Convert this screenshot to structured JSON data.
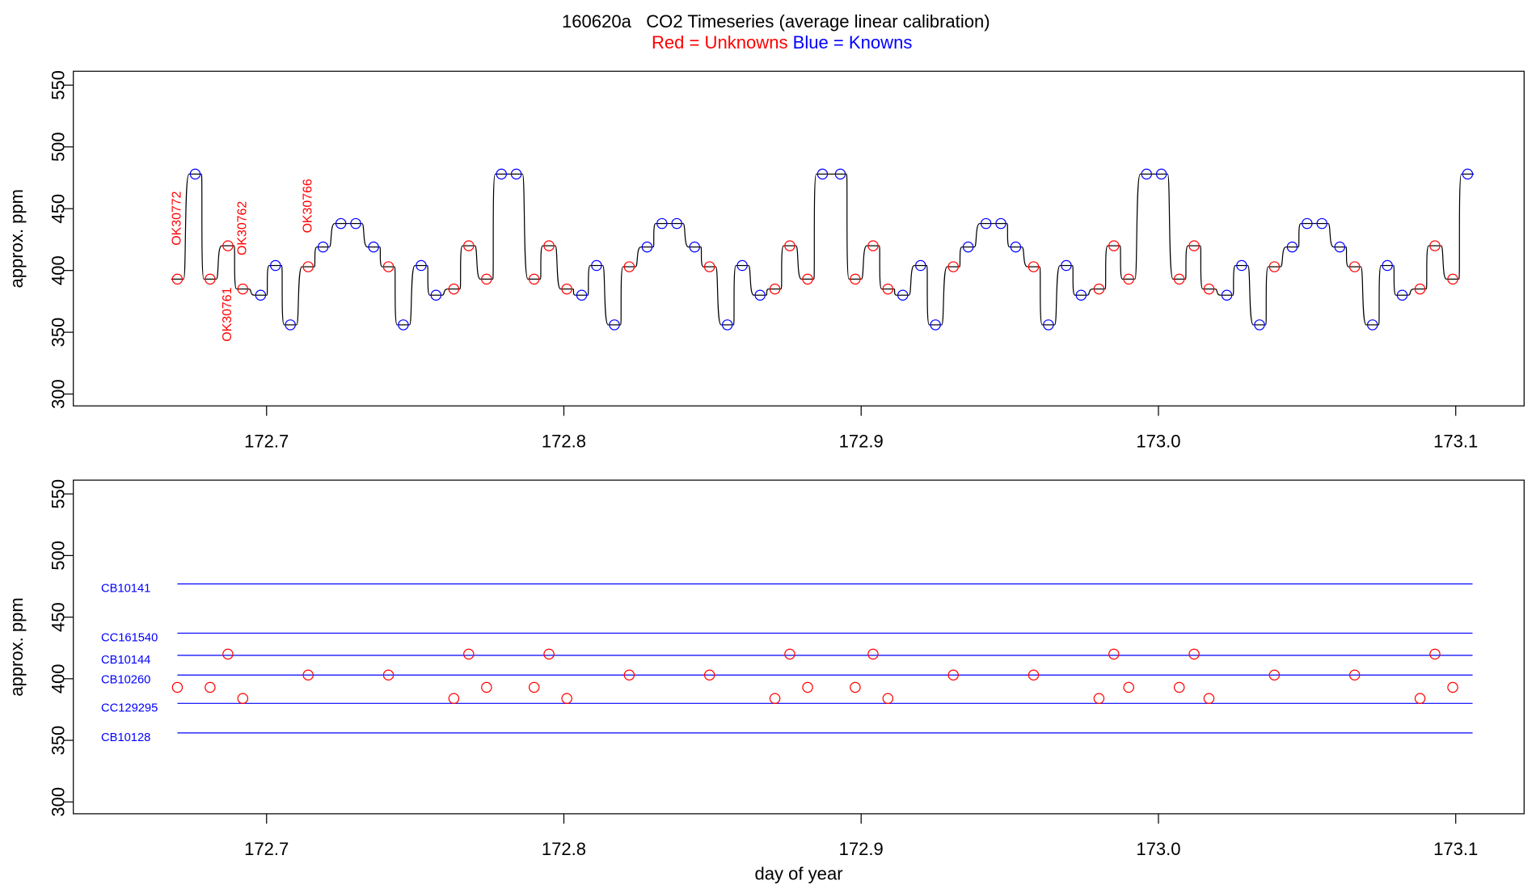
{
  "chart_data": [
    {
      "type": "step",
      "title": "160620a   CO2 Timeseries (average linear calibration)",
      "legend": [
        {
          "label": "Red = Unknowns",
          "color": "red"
        },
        {
          "label": "Blue = Knowns",
          "color": "blue"
        }
      ],
      "ylabel": "approx. ppm",
      "x": [
        172.67,
        172.676,
        172.681,
        172.687,
        172.692,
        172.698,
        172.703,
        172.708,
        172.714,
        172.719,
        172.725,
        172.73,
        172.736,
        172.741,
        172.746,
        172.752,
        172.757,
        172.763,
        172.768,
        172.774,
        172.779,
        172.784,
        172.79,
        172.795,
        172.801,
        172.806,
        172.811,
        172.817,
        172.822,
        172.828,
        172.833,
        172.838,
        172.844,
        172.849,
        172.855,
        172.86,
        172.866,
        172.871,
        172.876,
        172.882,
        172.887,
        172.893,
        172.898,
        172.904,
        172.909,
        172.914,
        172.92,
        172.925,
        172.931,
        172.936,
        172.942,
        172.947,
        172.952,
        172.958,
        172.963,
        172.969,
        172.974,
        172.98,
        172.985,
        172.99,
        172.996,
        173.001,
        173.007,
        173.012,
        173.017,
        173.023,
        173.028,
        173.034,
        173.039,
        173.045,
        173.05,
        173.055,
        173.061,
        173.066,
        173.072,
        173.077,
        173.082,
        173.088,
        173.093,
        173.099,
        173.104
      ],
      "values": [
        393,
        478,
        393,
        420,
        385,
        380,
        404,
        356,
        403,
        419,
        438,
        438,
        419,
        403,
        356,
        404,
        380,
        385,
        420,
        393,
        478,
        478,
        393,
        420,
        385,
        380,
        404,
        356,
        403,
        419,
        438,
        438,
        419,
        403,
        356,
        404,
        380,
        385,
        420,
        393,
        478,
        478,
        393,
        420,
        385,
        380,
        404,
        356,
        403,
        419,
        438,
        438,
        419,
        403,
        356,
        404,
        380,
        385,
        420,
        393,
        478,
        478,
        393,
        420,
        385,
        380,
        404,
        356,
        403,
        419,
        438,
        438,
        419,
        403,
        356,
        404,
        380,
        385,
        420,
        393,
        478
      ],
      "colors": [
        "red",
        "blue",
        "red",
        "red",
        "red",
        "blue",
        "blue",
        "blue",
        "red",
        "blue",
        "blue",
        "blue",
        "blue",
        "red",
        "blue",
        "blue",
        "blue",
        "red",
        "red",
        "red",
        "blue",
        "blue",
        "red",
        "red",
        "red",
        "blue",
        "blue",
        "blue",
        "red",
        "blue",
        "blue",
        "blue",
        "blue",
        "red",
        "blue",
        "blue",
        "blue",
        "red",
        "red",
        "red",
        "blue",
        "blue",
        "red",
        "red",
        "red",
        "blue",
        "blue",
        "blue",
        "red",
        "blue",
        "blue",
        "blue",
        "blue",
        "red",
        "blue",
        "blue",
        "blue",
        "red",
        "red",
        "red",
        "blue",
        "blue",
        "red",
        "red",
        "red",
        "blue",
        "blue",
        "blue",
        "red",
        "blue",
        "blue",
        "blue",
        "blue",
        "red",
        "blue",
        "blue",
        "blue",
        "red",
        "red",
        "red",
        "blue"
      ],
      "annotations": [
        "OK30772",
        "OK30761",
        "OK30762",
        "OK30766"
      ],
      "annotation_color": "red",
      "xlim": [
        172.635,
        173.123
      ],
      "ylim": [
        290.4,
        561.2
      ],
      "xticks": [
        172.7,
        172.8,
        172.9,
        {
          "value": 173,
          "label": "173.0"
        },
        173.1
      ],
      "yticks": [
        300,
        350,
        400,
        450,
        500,
        550
      ]
    },
    {
      "type": "scatter",
      "ylabel": "approx. ppm",
      "xlabel": "day of year",
      "x": [
        172.67,
        172.681,
        172.687,
        172.692,
        172.714,
        172.741,
        172.763,
        172.768,
        172.774,
        172.79,
        172.795,
        172.801,
        172.822,
        172.849,
        172.871,
        172.876,
        172.882,
        172.898,
        172.904,
        172.909,
        172.931,
        172.958,
        172.98,
        172.985,
        172.99,
        173.007,
        173.012,
        173.017,
        173.039,
        173.066,
        173.088,
        173.093,
        173.099
      ],
      "values": [
        393,
        393,
        420,
        384,
        403,
        403,
        384,
        420,
        393,
        393,
        420,
        384,
        403,
        403,
        384,
        420,
        393,
        393,
        420,
        384,
        403,
        403,
        384,
        420,
        393,
        393,
        420,
        384,
        403,
        403,
        384,
        420,
        393
      ],
      "color": "red",
      "standards": [
        {
          "name": "CB10141",
          "value": 477
        },
        {
          "name": "CC161540",
          "value": 437
        },
        {
          "name": "CB10144",
          "value": 419
        },
        {
          "name": "CB10260",
          "value": 403
        },
        {
          "name": "CC129295",
          "value": 380
        },
        {
          "name": "CB10128",
          "value": 356
        }
      ],
      "standard_color": "blue",
      "xlim": [
        172.635,
        173.123
      ],
      "ylim": [
        290.4,
        561.2
      ],
      "xticks": [
        172.7,
        172.8,
        172.9,
        {
          "value": 173,
          "label": "173.0"
        },
        173.1
      ],
      "yticks": [
        300,
        350,
        400,
        450,
        500,
        550
      ]
    }
  ]
}
